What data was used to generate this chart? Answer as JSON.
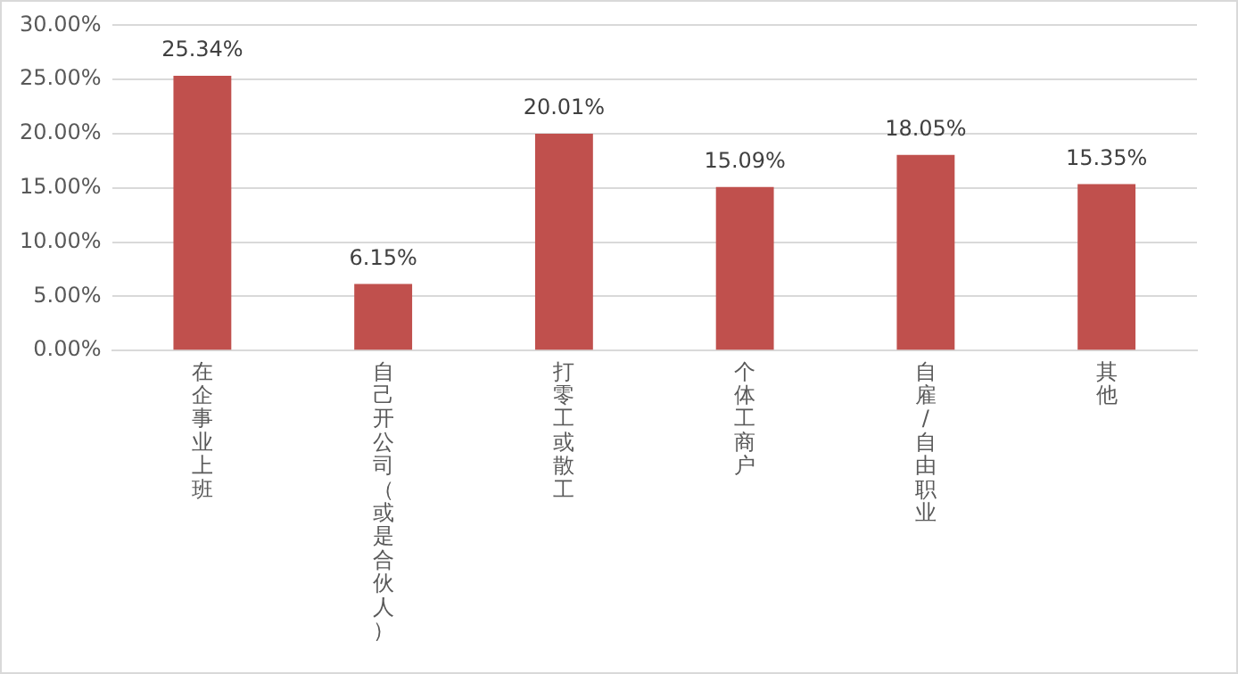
{
  "chart_data": {
    "type": "bar",
    "categories": [
      "在企事业上班",
      "自己开公司（或是合伙人）",
      "打零工或散工",
      "个体工商户",
      "自雇/自由职业",
      "其他"
    ],
    "values": [
      25.34,
      6.15,
      20.01,
      15.09,
      18.05,
      15.35
    ],
    "value_labels": [
      "25.34%",
      "6.15%",
      "20.01%",
      "15.09%",
      "18.05%",
      "15.35%"
    ],
    "color": "#c0504d",
    "ylim": [
      0,
      30
    ],
    "yticks": [
      {
        "value": 0,
        "label": "0.00%"
      },
      {
        "value": 5,
        "label": "5.00%"
      },
      {
        "value": 10,
        "label": "10.00%"
      },
      {
        "value": 15,
        "label": "15.00%"
      },
      {
        "value": 20,
        "label": "20.00%"
      },
      {
        "value": 25,
        "label": "25.00%"
      },
      {
        "value": 30,
        "label": "30.00%"
      }
    ],
    "grid": "y",
    "legend": false
  }
}
